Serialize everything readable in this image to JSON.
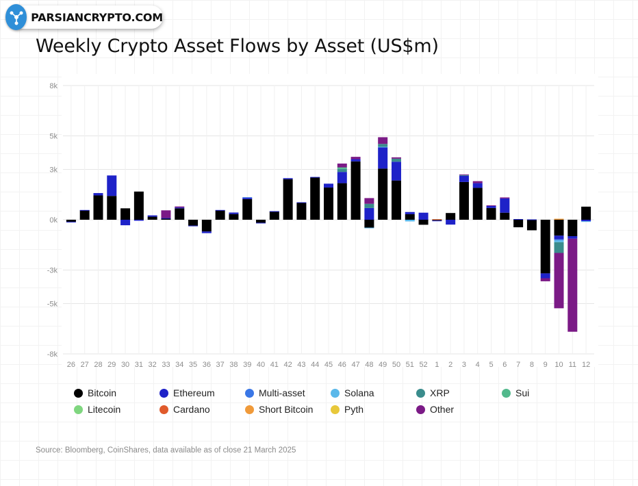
{
  "watermark": {
    "text": "PARSIANCRYPTO.COM"
  },
  "title": "Weekly Crypto Asset Flows by Asset (US$m)",
  "source": "Source: Bloomberg, CoinShares, data available as of close 21 March 2025",
  "chart_data": {
    "type": "bar",
    "stacked": true,
    "title": "Weekly Crypto Asset Flows by Asset (US$m)",
    "xlabel": "",
    "ylabel": "",
    "ylim": [
      -8000,
      8000
    ],
    "yticks": [
      -8000,
      -5000,
      -3000,
      0,
      3000,
      5000,
      8000
    ],
    "ytick_labels": [
      "-8k",
      "-5k",
      "-3k",
      "0k",
      "3k",
      "5k",
      "8k"
    ],
    "grid": true,
    "legend_position": "bottom",
    "categories": [
      "26",
      "27",
      "28",
      "29",
      "30",
      "31",
      "32",
      "33",
      "34",
      "35",
      "36",
      "37",
      "38",
      "39",
      "40",
      "41",
      "42",
      "43",
      "44",
      "45",
      "46",
      "47",
      "48",
      "49",
      "50",
      "51",
      "52",
      "1",
      "2",
      "3",
      "4",
      "5",
      "6",
      "7",
      "8",
      "9",
      "10",
      "11",
      "12"
    ],
    "series": [
      {
        "name": "Bitcoin",
        "color": "#000000",
        "values": [
          -120,
          560,
          1450,
          1420,
          680,
          1680,
          180,
          80,
          680,
          -350,
          -700,
          560,
          340,
          1230,
          -180,
          500,
          2420,
          1000,
          2520,
          1920,
          2180,
          3480,
          -470,
          3050,
          2340,
          330,
          -300,
          -50,
          400,
          2250,
          1900,
          700,
          420,
          -450,
          -630,
          -3200,
          -950,
          -980,
          780
        ]
      },
      {
        "name": "Ethereum",
        "color": "#1e22c8",
        "values": [
          -40,
          20,
          140,
          1220,
          -330,
          -60,
          80,
          20,
          50,
          -20,
          -100,
          20,
          90,
          80,
          -20,
          10,
          60,
          40,
          30,
          230,
          670,
          130,
          700,
          1270,
          1120,
          130,
          420,
          -20,
          -290,
          370,
          280,
          120,
          850,
          40,
          20,
          -290,
          -220,
          -150,
          -90
        ]
      },
      {
        "name": "Multi-asset",
        "color": "#3a77e6",
        "values": [
          0,
          0,
          0,
          0,
          0,
          0,
          0,
          0,
          0,
          0,
          0,
          0,
          0,
          30,
          0,
          0,
          0,
          0,
          0,
          0,
          0,
          0,
          0,
          0,
          0,
          0,
          0,
          0,
          0,
          0,
          0,
          0,
          0,
          0,
          0,
          0,
          -50,
          0,
          0
        ]
      },
      {
        "name": "Solana",
        "color": "#5ab8ea",
        "values": [
          0,
          0,
          0,
          0,
          0,
          0,
          0,
          0,
          0,
          0,
          0,
          0,
          0,
          0,
          0,
          0,
          0,
          0,
          0,
          0,
          0,
          0,
          -40,
          30,
          0,
          -100,
          0,
          0,
          0,
          0,
          0,
          0,
          0,
          0,
          0,
          0,
          -120,
          0,
          -20
        ]
      },
      {
        "name": "XRP",
        "color": "#3a8c8c",
        "values": [
          0,
          0,
          0,
          0,
          0,
          0,
          0,
          0,
          0,
          0,
          0,
          0,
          0,
          0,
          0,
          0,
          0,
          0,
          0,
          0,
          180,
          0,
          250,
          170,
          180,
          0,
          0,
          0,
          0,
          50,
          0,
          0,
          0,
          0,
          0,
          0,
          -640,
          0,
          0
        ]
      },
      {
        "name": "Sui",
        "color": "#52b98c",
        "values": [
          0,
          0,
          0,
          0,
          0,
          0,
          0,
          0,
          0,
          0,
          0,
          0,
          0,
          0,
          0,
          0,
          0,
          0,
          0,
          0,
          90,
          0,
          0,
          0,
          0,
          0,
          0,
          0,
          0,
          0,
          0,
          0,
          0,
          0,
          0,
          0,
          0,
          0,
          0
        ]
      },
      {
        "name": "Litecoin",
        "color": "#7fd67f",
        "values": [
          0,
          0,
          0,
          0,
          0,
          0,
          0,
          0,
          0,
          0,
          0,
          0,
          0,
          0,
          0,
          0,
          0,
          0,
          0,
          0,
          0,
          0,
          0,
          0,
          0,
          0,
          0,
          0,
          0,
          0,
          0,
          0,
          0,
          0,
          0,
          0,
          0,
          0,
          0
        ]
      },
      {
        "name": "Cardano",
        "color": "#e05a2b",
        "values": [
          0,
          0,
          0,
          0,
          0,
          0,
          0,
          0,
          0,
          0,
          0,
          0,
          0,
          0,
          0,
          0,
          0,
          0,
          0,
          0,
          0,
          0,
          0,
          0,
          0,
          0,
          0,
          30,
          0,
          0,
          0,
          0,
          0,
          0,
          0,
          0,
          0,
          0,
          0
        ]
      },
      {
        "name": "Short Bitcoin",
        "color": "#f09a3a",
        "values": [
          0,
          0,
          0,
          0,
          0,
          0,
          0,
          0,
          0,
          0,
          0,
          0,
          0,
          0,
          0,
          0,
          0,
          0,
          0,
          0,
          0,
          0,
          0,
          0,
          0,
          0,
          0,
          0,
          0,
          0,
          0,
          0,
          0,
          0,
          0,
          0,
          60,
          0,
          0
        ]
      },
      {
        "name": "Pyth",
        "color": "#e8c83a",
        "values": [
          0,
          0,
          0,
          0,
          0,
          0,
          0,
          0,
          0,
          0,
          0,
          0,
          0,
          0,
          0,
          0,
          0,
          0,
          0,
          0,
          0,
          0,
          0,
          0,
          0,
          0,
          0,
          0,
          0,
          0,
          0,
          0,
          0,
          0,
          0,
          0,
          0,
          0,
          0
        ]
      },
      {
        "name": "Other",
        "color": "#7b1a86",
        "values": [
          0,
          0,
          0,
          0,
          0,
          0,
          0,
          460,
          60,
          0,
          0,
          0,
          0,
          0,
          0,
          0,
          0,
          0,
          0,
          0,
          230,
          140,
          340,
          400,
          80,
          0,
          0,
          0,
          0,
          30,
          120,
          40,
          60,
          0,
          0,
          -180,
          -3300,
          -5550,
          0
        ]
      }
    ]
  }
}
